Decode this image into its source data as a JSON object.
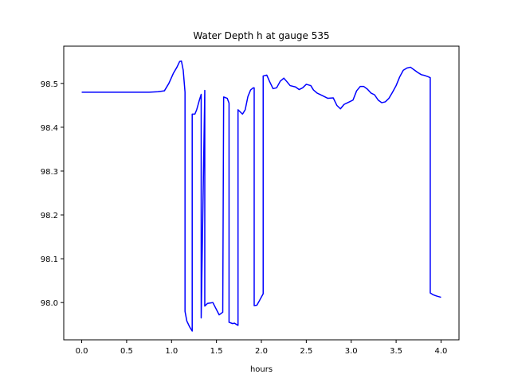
{
  "chart_data": {
    "type": "line",
    "title": "Water Depth h at gauge 535",
    "xlabel": "hours",
    "ylabel": "",
    "xlim": [
      -0.2,
      4.2
    ],
    "ylim": [
      97.915,
      98.585
    ],
    "xticks": [
      0.0,
      0.5,
      1.0,
      1.5,
      2.0,
      2.5,
      3.0,
      3.5,
      4.0
    ],
    "xtick_labels": [
      "0.0",
      "0.5",
      "1.0",
      "1.5",
      "2.0",
      "2.5",
      "3.0",
      "3.5",
      "4.0"
    ],
    "yticks": [
      98.0,
      98.1,
      98.2,
      98.3,
      98.4,
      98.5
    ],
    "ytick_labels": [
      "98.0",
      "98.1",
      "98.2",
      "98.3",
      "98.4",
      "98.5"
    ],
    "grid": false,
    "legend": "none",
    "series": [
      {
        "color": "#0000ff",
        "x": [
          0.0,
          0.5,
          0.75,
          0.85,
          0.92,
          0.97,
          1.02,
          1.06,
          1.09,
          1.11,
          1.13,
          1.15,
          1.15,
          1.17,
          1.2,
          1.23,
          1.23,
          1.26,
          1.28,
          1.31,
          1.33,
          1.33,
          1.37,
          1.37,
          1.38,
          1.4,
          1.43,
          1.46,
          1.49,
          1.53,
          1.57,
          1.58,
          1.58,
          1.62,
          1.64,
          1.64,
          1.68,
          1.7,
          1.74,
          1.74,
          1.79,
          1.82,
          1.85,
          1.88,
          1.91,
          1.92,
          1.92,
          1.95,
          1.98,
          2.02,
          2.02,
          2.06,
          2.09,
          2.13,
          2.17,
          2.21,
          2.25,
          2.28,
          2.32,
          2.38,
          2.42,
          2.46,
          2.5,
          2.55,
          2.58,
          2.62,
          2.68,
          2.74,
          2.8,
          2.84,
          2.88,
          2.92,
          2.96,
          3.02,
          3.06,
          3.1,
          3.14,
          3.18,
          3.22,
          3.26,
          3.3,
          3.34,
          3.38,
          3.42,
          3.46,
          3.5,
          3.54,
          3.58,
          3.62,
          3.66,
          3.7,
          3.74,
          3.78,
          3.82,
          3.86,
          3.88,
          3.88,
          3.91,
          3.95,
          4.0
        ],
        "values": [
          98.48,
          98.48,
          98.48,
          98.481,
          98.483,
          98.5,
          98.523,
          98.537,
          98.55,
          98.551,
          98.53,
          98.48,
          97.98,
          97.958,
          97.945,
          97.935,
          98.43,
          98.43,
          98.44,
          98.462,
          98.475,
          97.965,
          98.484,
          97.992,
          97.994,
          97.998,
          97.999,
          98.0,
          97.988,
          97.972,
          97.978,
          98.465,
          98.469,
          98.466,
          98.455,
          97.955,
          97.952,
          97.953,
          97.948,
          98.44,
          98.43,
          98.44,
          98.47,
          98.485,
          98.49,
          98.49,
          97.993,
          97.994,
          98.005,
          98.02,
          98.517,
          98.519,
          98.505,
          98.488,
          98.49,
          98.505,
          98.512,
          98.505,
          98.495,
          98.492,
          98.486,
          98.49,
          98.498,
          98.495,
          98.485,
          98.478,
          98.472,
          98.466,
          98.467,
          98.45,
          98.442,
          98.452,
          98.456,
          98.462,
          98.483,
          98.493,
          98.493,
          98.487,
          98.478,
          98.474,
          98.462,
          98.456,
          98.458,
          98.466,
          98.48,
          98.495,
          98.515,
          98.53,
          98.535,
          98.537,
          98.531,
          98.525,
          98.52,
          98.518,
          98.515,
          98.513,
          98.022,
          98.018,
          98.015,
          98.012
        ]
      }
    ]
  }
}
